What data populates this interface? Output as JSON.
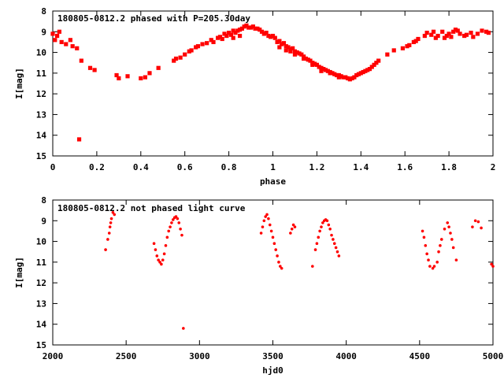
{
  "chart_data": [
    {
      "type": "scatter",
      "title": "180805-0812.2 phased with P=205.30day",
      "xlabel": "phase",
      "ylabel": "I[mag]",
      "xlim": [
        0,
        2
      ],
      "ylim": [
        15,
        8
      ],
      "y_inverted": true,
      "grid": false,
      "xticks": [
        "0",
        "0.2",
        "0.4",
        "0.6",
        "0.8",
        "1",
        "1.2",
        "1.4",
        "1.6",
        "1.8",
        "2"
      ],
      "yticks": [
        "8",
        "9",
        "10",
        "11",
        "12",
        "13",
        "14",
        "15"
      ],
      "marker_color": "#ff0000",
      "series": [
        {
          "values": [
            [
              0.0,
              9.1
            ],
            [
              0.01,
              9.4
            ],
            [
              0.02,
              9.2
            ],
            [
              0.03,
              9.0
            ],
            [
              0.04,
              9.5
            ],
            [
              0.06,
              9.6
            ],
            [
              0.08,
              9.4
            ],
            [
              0.09,
              9.7
            ],
            [
              0.11,
              9.8
            ],
            [
              0.13,
              10.4
            ],
            [
              0.12,
              14.2
            ],
            [
              0.17,
              10.75
            ],
            [
              0.19,
              10.85
            ],
            [
              0.29,
              11.1
            ],
            [
              0.3,
              11.25
            ],
            [
              0.34,
              11.15
            ],
            [
              0.4,
              11.25
            ],
            [
              0.42,
              11.2
            ],
            [
              0.44,
              11.0
            ],
            [
              0.48,
              10.75
            ],
            [
              0.55,
              10.4
            ],
            [
              0.56,
              10.3
            ],
            [
              0.58,
              10.25
            ],
            [
              0.6,
              10.1
            ],
            [
              0.62,
              9.95
            ],
            [
              0.63,
              9.9
            ],
            [
              0.65,
              9.75
            ],
            [
              0.66,
              9.7
            ],
            [
              0.68,
              9.6
            ],
            [
              0.7,
              9.55
            ],
            [
              0.72,
              9.4
            ],
            [
              0.73,
              9.5
            ],
            [
              0.75,
              9.3
            ],
            [
              0.76,
              9.25
            ],
            [
              0.77,
              9.35
            ],
            [
              0.78,
              9.1
            ],
            [
              0.79,
              9.2
            ],
            [
              0.8,
              9.05
            ],
            [
              0.81,
              9.15
            ],
            [
              0.82,
              8.95
            ],
            [
              0.83,
              9.05
            ],
            [
              0.84,
              8.95
            ],
            [
              0.85,
              8.9
            ],
            [
              0.86,
              8.85
            ],
            [
              0.87,
              8.75
            ],
            [
              0.88,
              8.7
            ],
            [
              0.89,
              8.8
            ],
            [
              0.9,
              8.8
            ],
            [
              0.91,
              8.75
            ],
            [
              0.92,
              8.85
            ],
            [
              0.93,
              8.85
            ],
            [
              0.94,
              8.9
            ],
            [
              0.95,
              9.0
            ],
            [
              0.96,
              9.1
            ],
            [
              0.97,
              9.05
            ],
            [
              0.98,
              9.2
            ],
            [
              0.99,
              9.25
            ],
            [
              0.82,
              9.3
            ],
            [
              0.85,
              9.2
            ],
            [
              1.0,
              9.2
            ],
            [
              1.01,
              9.3
            ],
            [
              1.02,
              9.5
            ],
            [
              1.03,
              9.45
            ],
            [
              1.04,
              9.6
            ],
            [
              1.05,
              9.55
            ],
            [
              1.06,
              9.7
            ],
            [
              1.07,
              9.75
            ],
            [
              1.08,
              9.85
            ],
            [
              1.09,
              9.8
            ],
            [
              1.1,
              9.95
            ],
            [
              1.11,
              10.0
            ],
            [
              1.12,
              10.05
            ],
            [
              1.13,
              10.1
            ],
            [
              1.14,
              10.2
            ],
            [
              1.15,
              10.3
            ],
            [
              1.16,
              10.35
            ],
            [
              1.17,
              10.4
            ],
            [
              1.18,
              10.5
            ],
            [
              1.19,
              10.55
            ],
            [
              1.2,
              10.6
            ],
            [
              1.21,
              10.7
            ],
            [
              1.22,
              10.75
            ],
            [
              1.23,
              10.8
            ],
            [
              1.24,
              10.85
            ],
            [
              1.25,
              10.9
            ],
            [
              1.26,
              10.95
            ],
            [
              1.27,
              11.0
            ],
            [
              1.28,
              11.05
            ],
            [
              1.29,
              11.1
            ],
            [
              1.3,
              11.1
            ],
            [
              1.31,
              11.15
            ],
            [
              1.32,
              11.2
            ],
            [
              1.33,
              11.2
            ],
            [
              1.34,
              11.25
            ],
            [
              1.35,
              11.3
            ],
            [
              1.36,
              11.25
            ],
            [
              1.37,
              11.2
            ],
            [
              1.38,
              11.1
            ],
            [
              1.39,
              11.05
            ],
            [
              1.4,
              11.0
            ],
            [
              1.41,
              10.95
            ],
            [
              1.42,
              10.9
            ],
            [
              1.43,
              10.85
            ],
            [
              1.44,
              10.8
            ],
            [
              1.45,
              10.7
            ],
            [
              1.46,
              10.6
            ],
            [
              1.47,
              10.5
            ],
            [
              1.48,
              10.4
            ],
            [
              1.52,
              10.1
            ],
            [
              1.55,
              9.9
            ],
            [
              1.59,
              9.8
            ],
            [
              1.61,
              9.7
            ],
            [
              1.62,
              9.65
            ],
            [
              1.64,
              9.5
            ],
            [
              1.65,
              9.45
            ],
            [
              1.66,
              9.35
            ],
            [
              1.69,
              9.2
            ],
            [
              1.7,
              9.05
            ],
            [
              1.72,
              9.15
            ],
            [
              1.73,
              9.0
            ],
            [
              1.74,
              9.3
            ],
            [
              1.75,
              9.2
            ],
            [
              1.77,
              9.0
            ],
            [
              1.78,
              9.3
            ],
            [
              1.79,
              9.2
            ],
            [
              1.8,
              9.1
            ],
            [
              1.81,
              9.25
            ],
            [
              1.82,
              9.0
            ],
            [
              1.83,
              8.9
            ],
            [
              1.84,
              8.95
            ],
            [
              1.85,
              9.1
            ],
            [
              1.87,
              9.2
            ],
            [
              1.88,
              9.15
            ],
            [
              1.9,
              9.05
            ],
            [
              1.91,
              9.25
            ],
            [
              1.93,
              9.1
            ],
            [
              1.95,
              8.95
            ],
            [
              1.97,
              9.0
            ],
            [
              1.98,
              9.05
            ],
            [
              1.06,
              9.9
            ],
            [
              1.1,
              10.1
            ],
            [
              1.14,
              10.3
            ],
            [
              1.18,
              10.6
            ],
            [
              1.22,
              10.9
            ],
            [
              1.26,
              11.0
            ],
            [
              1.3,
              11.2
            ],
            [
              1.08,
              9.95
            ],
            [
              1.03,
              9.75
            ]
          ]
        }
      ]
    },
    {
      "type": "scatter",
      "title": "180805-0812.2 not phased light curve",
      "xlabel": "hjd0",
      "ylabel": "I[mag]",
      "xlim": [
        2000,
        5000
      ],
      "ylim": [
        15,
        8
      ],
      "y_inverted": true,
      "grid": false,
      "xticks": [
        "2000",
        "2500",
        "3000",
        "3500",
        "4000",
        "4500",
        "5000"
      ],
      "yticks": [
        "8",
        "9",
        "10",
        "11",
        "12",
        "13",
        "14",
        "15"
      ],
      "marker_color": "#ff0000",
      "series": [
        {
          "values": [
            [
              2360,
              10.4
            ],
            [
              2375,
              9.9
            ],
            [
              2385,
              9.6
            ],
            [
              2390,
              9.3
            ],
            [
              2395,
              9.1
            ],
            [
              2400,
              8.9
            ],
            [
              2410,
              8.6
            ],
            [
              2420,
              8.7
            ],
            [
              2690,
              10.1
            ],
            [
              2700,
              10.4
            ],
            [
              2710,
              10.7
            ],
            [
              2720,
              10.9
            ],
            [
              2730,
              11.0
            ],
            [
              2740,
              11.1
            ],
            [
              2750,
              10.9
            ],
            [
              2760,
              10.6
            ],
            [
              2770,
              10.2
            ],
            [
              2780,
              9.8
            ],
            [
              2790,
              9.5
            ],
            [
              2800,
              9.3
            ],
            [
              2810,
              9.1
            ],
            [
              2820,
              8.95
            ],
            [
              2830,
              8.85
            ],
            [
              2840,
              8.8
            ],
            [
              2850,
              8.9
            ],
            [
              2860,
              9.1
            ],
            [
              2870,
              9.4
            ],
            [
              2880,
              9.7
            ],
            [
              2890,
              14.2
            ],
            [
              3420,
              9.6
            ],
            [
              3430,
              9.3
            ],
            [
              3440,
              9.0
            ],
            [
              3450,
              8.8
            ],
            [
              3460,
              8.7
            ],
            [
              3470,
              8.9
            ],
            [
              3480,
              9.2
            ],
            [
              3490,
              9.5
            ],
            [
              3500,
              9.8
            ],
            [
              3510,
              10.1
            ],
            [
              3520,
              10.4
            ],
            [
              3530,
              10.7
            ],
            [
              3540,
              11.0
            ],
            [
              3550,
              11.2
            ],
            [
              3560,
              11.3
            ],
            [
              3620,
              9.6
            ],
            [
              3630,
              9.4
            ],
            [
              3640,
              9.2
            ],
            [
              3650,
              9.3
            ],
            [
              3770,
              11.2
            ],
            [
              3790,
              10.4
            ],
            [
              3800,
              10.1
            ],
            [
              3810,
              9.8
            ],
            [
              3820,
              9.5
            ],
            [
              3830,
              9.3
            ],
            [
              3840,
              9.1
            ],
            [
              3850,
              9.0
            ],
            [
              3860,
              8.95
            ],
            [
              3870,
              9.0
            ],
            [
              3880,
              9.2
            ],
            [
              3890,
              9.4
            ],
            [
              3900,
              9.7
            ],
            [
              3910,
              9.9
            ],
            [
              3920,
              10.1
            ],
            [
              3930,
              10.3
            ],
            [
              3940,
              10.5
            ],
            [
              3950,
              10.7
            ],
            [
              4520,
              9.5
            ],
            [
              4530,
              9.8
            ],
            [
              4540,
              10.2
            ],
            [
              4550,
              10.6
            ],
            [
              4560,
              10.9
            ],
            [
              4570,
              11.2
            ],
            [
              4590,
              11.3
            ],
            [
              4600,
              11.2
            ],
            [
              4620,
              11.0
            ],
            [
              4630,
              10.5
            ],
            [
              4640,
              10.2
            ],
            [
              4650,
              9.9
            ],
            [
              4670,
              9.4
            ],
            [
              4690,
              9.1
            ],
            [
              4700,
              9.3
            ],
            [
              4710,
              9.6
            ],
            [
              4720,
              9.9
            ],
            [
              4730,
              10.3
            ],
            [
              4750,
              10.9
            ],
            [
              4860,
              9.3
            ],
            [
              4880,
              9.0
            ],
            [
              4900,
              9.05
            ],
            [
              4920,
              9.35
            ],
            [
              4990,
              11.1
            ],
            [
              5000,
              11.2
            ]
          ]
        }
      ]
    }
  ]
}
